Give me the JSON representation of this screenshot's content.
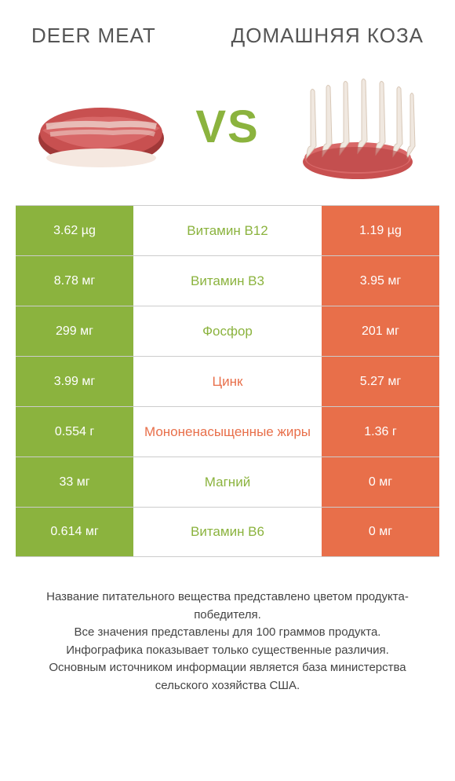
{
  "header": {
    "left_title": "DEER MEAT",
    "right_title": "ДОМАШНЯЯ КОЗА",
    "vs": "VS"
  },
  "colors": {
    "left": "#8bb33e",
    "right": "#e86f4a",
    "background": "#ffffff",
    "border": "#cccccc",
    "text": "#444444"
  },
  "rows": [
    {
      "nutrient": "Витамин B12",
      "left": "3.62 µg",
      "right": "1.19 µg",
      "winner": "left"
    },
    {
      "nutrient": "Витамин B3",
      "left": "8.78 мг",
      "right": "3.95 мг",
      "winner": "left"
    },
    {
      "nutrient": "Фосфор",
      "left": "299 мг",
      "right": "201 мг",
      "winner": "left"
    },
    {
      "nutrient": "Цинк",
      "left": "3.99 мг",
      "right": "5.27 мг",
      "winner": "right"
    },
    {
      "nutrient": "Мононенасыщенные жиры",
      "left": "0.554 г",
      "right": "1.36 г",
      "winner": "right"
    },
    {
      "nutrient": "Магний",
      "left": "33 мг",
      "right": "0 мг",
      "winner": "left"
    },
    {
      "nutrient": "Витамин B6",
      "left": "0.614 мг",
      "right": "0 мг",
      "winner": "left"
    }
  ],
  "footer": {
    "line1": "Название питательного вещества представлено цветом продукта-победителя.",
    "line2": "Все значения представлены для 100 граммов продукта.",
    "line3": "Инфографика показывает только существенные различия.",
    "line4": "Основным источником информации является база министерства сельского хозяйства США."
  }
}
